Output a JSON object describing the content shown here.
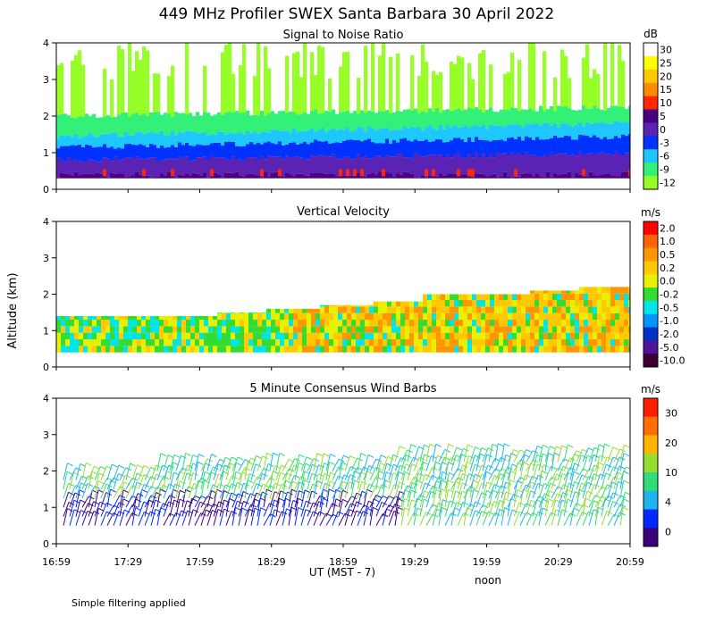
{
  "title": "449 MHz Profiler SWEX Santa Barbara 30 April 2022",
  "y_axis_label": "Altitude (km)",
  "x_axis_label": "UT  (MST - 7)",
  "noon_label": "noon",
  "footnote": "Simple filtering applied",
  "chart_data": [
    {
      "type": "heatmap",
      "title": "Signal to Noise Ratio",
      "x_ticks": [
        "16:59",
        "17:29",
        "17:59",
        "18:29",
        "18:59",
        "19:29",
        "19:59",
        "20:29",
        "20:59"
      ],
      "y_ticks": [
        "0",
        "1",
        "2",
        "3",
        "4"
      ],
      "ylim": [
        0,
        4
      ],
      "colorbar_unit": "dB",
      "colorbar_labels": [
        "30",
        "25",
        "20",
        "15",
        "10",
        "5",
        "0",
        "-3",
        "-6",
        "-9",
        "-12"
      ],
      "colorbar_colors": [
        "#ffffff",
        "#ffff00",
        "#ffc800",
        "#ff8c00",
        "#ff2800",
        "#4b0082",
        "#5a23b4",
        "#0032ff",
        "#1ec8ff",
        "#32f078",
        "#96ff28"
      ],
      "profile": [
        {
          "top_km": 0.4,
          "value_db": 12
        },
        {
          "top_km": 0.8,
          "value_db": 3
        },
        {
          "top_km": 1.2,
          "value_db": 0
        },
        {
          "top_km": 1.5,
          "value_db": -5
        },
        {
          "top_km": 2.0,
          "value_db": -10
        }
      ]
    },
    {
      "type": "heatmap",
      "title": "Vertical Velocity",
      "y_ticks": [
        "0",
        "1",
        "2",
        "3",
        "4"
      ],
      "ylim": [
        0,
        4
      ],
      "colorbar_unit": "m/s",
      "colorbar_labels": [
        "2.0",
        "1.0",
        "0.5",
        "0.2",
        "0.0",
        "-0.2",
        "-0.5",
        "-1.0",
        "-2.0",
        "-5.0",
        "-10.0"
      ],
      "colorbar_colors": [
        "#ff0000",
        "#ff6400",
        "#ff9600",
        "#ffc800",
        "#e6f000",
        "#32dc32",
        "#00e6e6",
        "#0096ff",
        "#0032c8",
        "#50149b",
        "#3c0032"
      ],
      "data_top_km": [
        1.4,
        1.4,
        1.4,
        1.5,
        1.6,
        1.7,
        1.8,
        2.0,
        2.0,
        2.1,
        2.2
      ]
    },
    {
      "type": "scatter",
      "title": "5 Minute Consensus Wind Barbs",
      "y_ticks": [
        "0",
        "1",
        "2",
        "3",
        "4"
      ],
      "ylim": [
        0,
        4
      ],
      "colorbar_unit": "m/s",
      "colorbar_labels": [
        "30",
        "20",
        "10",
        "4",
        "0"
      ],
      "colorbar_colors": [
        "#ff1e00",
        "#ff6e00",
        "#ffb400",
        "#96dc32",
        "#32dc78",
        "#1eb4f0",
        "#0028ff",
        "#3c0078"
      ]
    }
  ]
}
